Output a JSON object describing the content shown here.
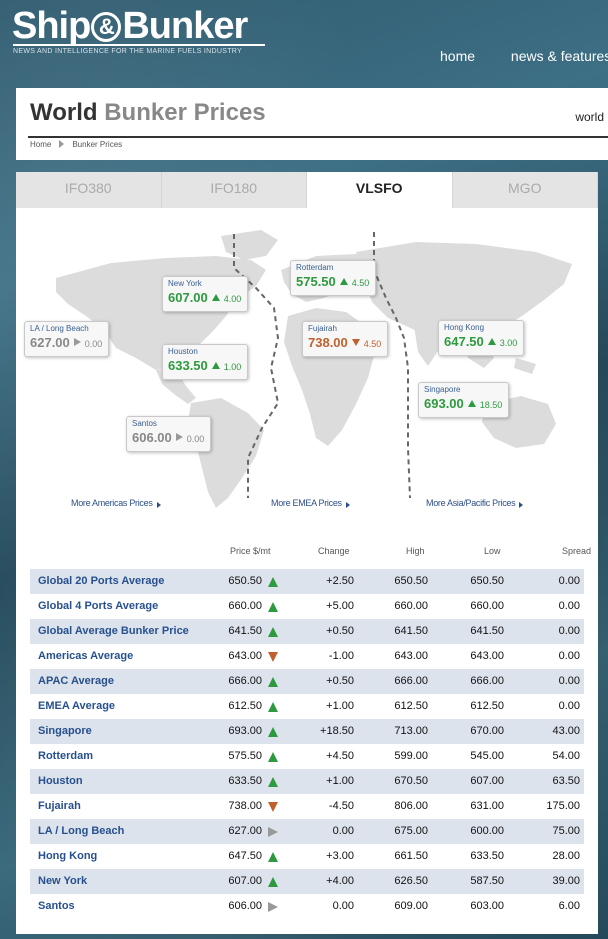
{
  "header": {
    "logo_part1": "Ship",
    "logo_amp": "&",
    "logo_part2": "Bunker",
    "tagline": "NEWS AND INTELLIGENCE FOR THE MARINE FUELS INDUSTRY",
    "nav": [
      "home",
      "news & features"
    ]
  },
  "page": {
    "title_main": "World",
    "title_rest": "Bunker Prices",
    "world_link": "world",
    "breadcrumb": [
      "Home",
      "Bunker Prices"
    ]
  },
  "tabs": [
    {
      "label": "IFO380",
      "active": false
    },
    {
      "label": "IFO180",
      "active": false
    },
    {
      "label": "VLSFO",
      "active": true
    },
    {
      "label": "MGO",
      "active": false
    }
  ],
  "map": {
    "bubbles": [
      {
        "port": "New York",
        "price": "607.00",
        "change": "4.00",
        "dir": "up"
      },
      {
        "port": "Rotterdam",
        "price": "575.50",
        "change": "4.50",
        "dir": "up"
      },
      {
        "port": "LA / Long Beach",
        "price": "627.00",
        "change": "0.00",
        "dir": "flat"
      },
      {
        "port": "Fujairah",
        "price": "738.00",
        "change": "4.50",
        "dir": "down"
      },
      {
        "port": "Hong Kong",
        "price": "647.50",
        "change": "3.00",
        "dir": "up"
      },
      {
        "port": "Houston",
        "price": "633.50",
        "change": "1.00",
        "dir": "up"
      },
      {
        "port": "Singapore",
        "price": "693.00",
        "change": "18.50",
        "dir": "up"
      },
      {
        "port": "Santos",
        "price": "606.00",
        "change": "0.00",
        "dir": "flat"
      }
    ],
    "region_links": [
      "More Americas Prices",
      "More EMEA Prices",
      "More Asia/Pacific Prices"
    ]
  },
  "table": {
    "headers": [
      "Price $/mt",
      "Change",
      "High",
      "Low",
      "Spread"
    ],
    "rows": [
      {
        "name": "Global 20 Ports Average",
        "price": "650.50",
        "dir": "up",
        "change": "+2.50",
        "high": "650.50",
        "low": "650.50",
        "spread": "0.00"
      },
      {
        "name": "Global 4 Ports Average",
        "price": "660.00",
        "dir": "up",
        "change": "+5.00",
        "high": "660.00",
        "low": "660.00",
        "spread": "0.00"
      },
      {
        "name": "Global Average Bunker Price",
        "price": "641.50",
        "dir": "up",
        "change": "+0.50",
        "high": "641.50",
        "low": "641.50",
        "spread": "0.00"
      },
      {
        "name": "Americas Average",
        "price": "643.00",
        "dir": "down",
        "change": "-1.00",
        "high": "643.00",
        "low": "643.00",
        "spread": "0.00"
      },
      {
        "name": "APAC Average",
        "price": "666.00",
        "dir": "up",
        "change": "+0.50",
        "high": "666.00",
        "low": "666.00",
        "spread": "0.00"
      },
      {
        "name": "EMEA Average",
        "price": "612.50",
        "dir": "up",
        "change": "+1.00",
        "high": "612.50",
        "low": "612.50",
        "spread": "0.00"
      },
      {
        "name": "Singapore",
        "price": "693.00",
        "dir": "up",
        "change": "+18.50",
        "high": "713.00",
        "low": "670.00",
        "spread": "43.00"
      },
      {
        "name": "Rotterdam",
        "price": "575.50",
        "dir": "up",
        "change": "+4.50",
        "high": "599.00",
        "low": "545.00",
        "spread": "54.00"
      },
      {
        "name": "Houston",
        "price": "633.50",
        "dir": "up",
        "change": "+1.00",
        "high": "670.50",
        "low": "607.00",
        "spread": "63.50"
      },
      {
        "name": "Fujairah",
        "price": "738.00",
        "dir": "down",
        "change": "-4.50",
        "high": "806.00",
        "low": "631.00",
        "spread": "175.00"
      },
      {
        "name": "LA / Long Beach",
        "price": "627.00",
        "dir": "flat",
        "change": "0.00",
        "high": "675.00",
        "low": "600.00",
        "spread": "75.00"
      },
      {
        "name": "Hong Kong",
        "price": "647.50",
        "dir": "up",
        "change": "+3.00",
        "high": "661.50",
        "low": "633.50",
        "spread": "28.00"
      },
      {
        "name": "New York",
        "price": "607.00",
        "dir": "up",
        "change": "+4.00",
        "high": "626.50",
        "low": "587.50",
        "spread": "39.00"
      },
      {
        "name": "Santos",
        "price": "606.00",
        "dir": "flat",
        "change": "0.00",
        "high": "609.00",
        "low": "603.00",
        "spread": "6.00"
      }
    ]
  },
  "colors": {
    "up": "#2e9a3f",
    "down": "#c0602e",
    "flat": "#999999",
    "link": "#27508f"
  }
}
